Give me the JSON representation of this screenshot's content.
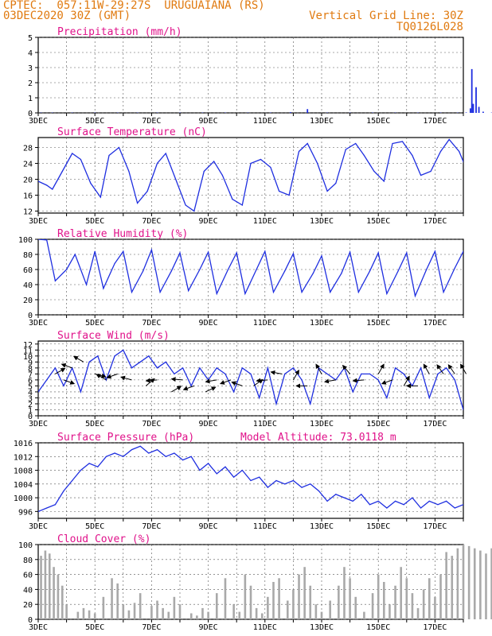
{
  "header": {
    "title": "CPTEC:  057:11W-29:27S  URUGUAIANA (RS)",
    "date": "03DEC2020 30Z (GMT)",
    "grid_note": "Vertical Grid Line: 30Z",
    "code": "TQ0126L028"
  },
  "colors": {
    "header": "#e07a10",
    "panel_title": "#e0128a",
    "line": "#1f2fe0",
    "bar": "#a9a9a9",
    "arrow": "#000000",
    "grid": "#555555"
  },
  "x_axis": {
    "start": "03DEC2020 00Z",
    "end": "18DEC2020 00Z",
    "tick_labels": [
      "3DEC",
      "5DEC",
      "7DEC",
      "9DEC",
      "11DEC",
      "13DEC",
      "15DEC",
      "17DEC"
    ]
  },
  "chart_data": [
    {
      "id": "precip",
      "type": "bar",
      "title": "Precipitation (mm/h)",
      "ylim": [
        0,
        5
      ],
      "yticks": [
        0,
        1,
        2,
        3,
        4,
        5
      ],
      "grid": true,
      "x_unit": "days since 3DEC 00Z",
      "x": [
        0.1,
        0.5,
        1.2,
        2.0,
        2.8,
        3.5,
        4.2,
        5.0,
        5.8,
        6.6,
        7.4,
        8.2,
        8.9,
        9.5,
        10.2,
        11.0,
        11.8,
        12.6,
        13.4,
        14.2,
        14.8,
        15.1,
        15.25,
        15.3,
        15.35,
        15.45,
        15.55,
        15.7,
        16.0,
        16.6,
        17.2,
        17.8
      ],
      "values": [
        0.02,
        0.02,
        0.02,
        0.02,
        0.02,
        0.02,
        0.02,
        0.02,
        0.02,
        0.02,
        0.02,
        0.02,
        0.05,
        0.25,
        0.02,
        0.02,
        0.02,
        0.02,
        0.02,
        0.02,
        0.02,
        0.03,
        0.3,
        2.9,
        0.6,
        1.7,
        0.4,
        0.08,
        0.02,
        0.02,
        0.02,
        0.02
      ]
    },
    {
      "id": "temp",
      "type": "line",
      "title": "Surface Temperature (nC)",
      "ylim": [
        11.5,
        30.5
      ],
      "yticks": [
        12,
        16,
        20,
        24,
        28
      ],
      "grid": true,
      "x": [
        0,
        0.3,
        0.5,
        0.85,
        1.2,
        1.5,
        1.85,
        2.2,
        2.5,
        2.85,
        3.2,
        3.5,
        3.85,
        4.2,
        4.5,
        4.85,
        5.2,
        5.5,
        5.85,
        6.2,
        6.5,
        6.85,
        7.2,
        7.5,
        7.85,
        8.2,
        8.5,
        8.85,
        9.2,
        9.5,
        9.85,
        10.2,
        10.5,
        10.85,
        11.2,
        11.5,
        11.85,
        12.2,
        12.5,
        12.85,
        13.2,
        13.5,
        13.85,
        14.2,
        14.5,
        14.85,
        15.2,
        15.5,
        15.85,
        16.2,
        16.5,
        16.85,
        17.2,
        17.5,
        17.85,
        18.0
      ],
      "values": [
        19.5,
        18.5,
        17.5,
        22,
        26.5,
        25,
        19,
        15.5,
        26,
        28,
        22,
        14,
        17,
        24,
        26.5,
        20,
        13.5,
        12,
        22,
        24.5,
        21,
        15,
        13.5,
        24,
        25,
        23,
        17,
        16,
        27,
        29,
        24,
        17,
        19,
        27.5,
        29,
        26,
        22,
        19.5,
        29,
        29.5,
        26,
        21,
        22,
        27,
        30,
        27,
        21,
        21.5,
        29.5,
        29,
        24,
        19.5,
        29,
        30,
        26,
        20
      ]
    },
    {
      "id": "rh",
      "type": "line",
      "title": "Relative Humidity (%)",
      "ylim": [
        0,
        100
      ],
      "yticks": [
        0,
        20,
        40,
        60,
        80,
        100
      ],
      "grid": true,
      "x": [
        0,
        0.3,
        0.6,
        1.0,
        1.3,
        1.7,
        2.0,
        2.3,
        2.7,
        3.0,
        3.3,
        3.7,
        4.0,
        4.3,
        4.7,
        5.0,
        5.3,
        5.7,
        6.0,
        6.3,
        6.7,
        7.0,
        7.3,
        7.7,
        8.0,
        8.3,
        8.7,
        9.0,
        9.3,
        9.7,
        10.0,
        10.3,
        10.7,
        11.0,
        11.3,
        11.7,
        12.0,
        12.3,
        12.7,
        13.0,
        13.3,
        13.7,
        14.0,
        14.3,
        14.7,
        15.0,
        15.3,
        15.7,
        16.0,
        16.3,
        16.7,
        17.0,
        17.3,
        17.7,
        18.0
      ],
      "values": [
        100,
        99,
        45,
        60,
        80,
        40,
        84,
        35,
        68,
        84,
        30,
        58,
        86,
        30,
        58,
        82,
        32,
        60,
        83,
        28,
        60,
        82,
        28,
        60,
        84,
        30,
        58,
        81,
        30,
        55,
        78,
        30,
        55,
        83,
        30,
        58,
        82,
        28,
        58,
        82,
        25,
        60,
        84,
        30,
        62,
        84,
        30,
        62,
        98,
        38,
        60,
        98,
        38,
        62,
        45
      ]
    },
    {
      "id": "wind",
      "type": "line",
      "title": "Surface Wind (m/s)",
      "ylim": [
        0,
        12.5
      ],
      "yticks": [
        0,
        1,
        2,
        3,
        4,
        5,
        6,
        7,
        8,
        9,
        10,
        11,
        12
      ],
      "grid": true,
      "x": [
        0,
        0.3,
        0.6,
        0.9,
        1.2,
        1.5,
        1.8,
        2.1,
        2.4,
        2.7,
        3.0,
        3.3,
        3.6,
        3.9,
        4.2,
        4.5,
        4.8,
        5.1,
        5.4,
        5.7,
        6.0,
        6.3,
        6.6,
        6.9,
        7.2,
        7.5,
        7.8,
        8.1,
        8.4,
        8.7,
        9.0,
        9.3,
        9.6,
        9.9,
        10.2,
        10.5,
        10.8,
        11.1,
        11.4,
        11.7,
        12.0,
        12.3,
        12.6,
        12.9,
        13.2,
        13.5,
        13.8,
        14.1,
        14.4,
        14.7,
        15.0,
        15.3,
        15.6,
        15.9,
        16.2,
        16.5,
        16.8,
        17.1,
        17.4,
        17.7,
        18.0
      ],
      "values": [
        4,
        6,
        8,
        5,
        8,
        4,
        9,
        10,
        6,
        10,
        11,
        8,
        9,
        10,
        8,
        9,
        7,
        8,
        5,
        8,
        6,
        8,
        7,
        4,
        8,
        7,
        3,
        8,
        2,
        7,
        8,
        6,
        2,
        8,
        7,
        6,
        8,
        4,
        7,
        7,
        6,
        3,
        8,
        7,
        5,
        8,
        3,
        7,
        8,
        6,
        1,
        8,
        7,
        4,
        8,
        6,
        5,
        8,
        5,
        7,
        6
      ]
    },
    {
      "id": "pres",
      "type": "line",
      "title": "Surface Pressure (hPa)",
      "annotation": "Model Altitude: 73.0118 m",
      "ylim": [
        994,
        1016
      ],
      "yticks": [
        996,
        1000,
        1004,
        1008,
        1012,
        1016
      ],
      "grid": true,
      "x": [
        0,
        0.3,
        0.6,
        0.9,
        1.2,
        1.5,
        1.8,
        2.1,
        2.4,
        2.7,
        3.0,
        3.3,
        3.6,
        3.9,
        4.2,
        4.5,
        4.8,
        5.1,
        5.4,
        5.7,
        6.0,
        6.3,
        6.6,
        6.9,
        7.2,
        7.5,
        7.8,
        8.1,
        8.4,
        8.7,
        9.0,
        9.3,
        9.6,
        9.9,
        10.2,
        10.5,
        10.8,
        11.1,
        11.4,
        11.7,
        12.0,
        12.3,
        12.6,
        12.9,
        13.2,
        13.5,
        13.8,
        14.1,
        14.4,
        14.7,
        15.0,
        15.3,
        15.6,
        15.9,
        16.2,
        16.5,
        16.8,
        17.1,
        17.4,
        17.7,
        18.0
      ],
      "values": [
        996,
        997,
        998,
        1002,
        1005,
        1008,
        1010,
        1009,
        1012,
        1013,
        1012,
        1014,
        1015,
        1013,
        1014,
        1012,
        1013,
        1011,
        1012,
        1008,
        1010,
        1007,
        1009,
        1006,
        1008,
        1005,
        1006,
        1003,
        1005,
        1004,
        1005,
        1003,
        1004,
        1002,
        999,
        1001,
        1000,
        999,
        1001,
        998,
        999,
        997,
        999,
        998,
        1000,
        997,
        999,
        998,
        999,
        997,
        998,
        999,
        997,
        998,
        996,
        999,
        997,
        998,
        996,
        997,
        997
      ]
    },
    {
      "id": "cloud",
      "type": "bar",
      "title": "Cloud Cover (%)",
      "ylim": [
        0,
        100
      ],
      "yticks": [
        0,
        20,
        40,
        60,
        80,
        100
      ],
      "grid": true,
      "x": [
        0.1,
        0.25,
        0.4,
        0.55,
        0.7,
        0.85,
        1.0,
        1.4,
        1.6,
        1.8,
        2.0,
        2.3,
        2.6,
        2.8,
        3.0,
        3.2,
        3.4,
        3.6,
        4.0,
        4.2,
        4.4,
        4.6,
        4.8,
        5.0,
        5.4,
        5.6,
        5.8,
        6.0,
        6.3,
        6.6,
        6.9,
        7.1,
        7.3,
        7.5,
        7.7,
        7.9,
        8.1,
        8.3,
        8.5,
        8.8,
        9.0,
        9.2,
        9.4,
        9.6,
        9.8,
        10.0,
        10.3,
        10.6,
        10.8,
        11.0,
        11.2,
        11.5,
        11.8,
        12.0,
        12.2,
        12.4,
        12.6,
        12.8,
        13.0,
        13.2,
        13.4,
        13.6,
        13.8,
        14.0,
        14.2,
        14.4,
        14.6,
        14.8,
        15.0,
        15.2,
        15.4,
        15.6,
        15.8,
        16.0,
        16.2,
        16.4,
        16.6,
        16.8,
        17.0,
        17.2,
        17.4,
        17.6,
        17.8
      ],
      "values": [
        85,
        92,
        88,
        70,
        60,
        45,
        20,
        10,
        15,
        12,
        8,
        30,
        55,
        48,
        20,
        12,
        22,
        35,
        18,
        25,
        15,
        10,
        30,
        20,
        8,
        5,
        15,
        10,
        35,
        55,
        20,
        10,
        60,
        45,
        15,
        8,
        30,
        50,
        55,
        25,
        40,
        60,
        70,
        45,
        20,
        10,
        25,
        45,
        70,
        55,
        30,
        10,
        35,
        60,
        50,
        20,
        45,
        70,
        55,
        35,
        15,
        40,
        55,
        30,
        60,
        90,
        85,
        95,
        100,
        98,
        95,
        92,
        88,
        95,
        100,
        85,
        80,
        70,
        60,
        65,
        40,
        30,
        15
      ]
    }
  ]
}
